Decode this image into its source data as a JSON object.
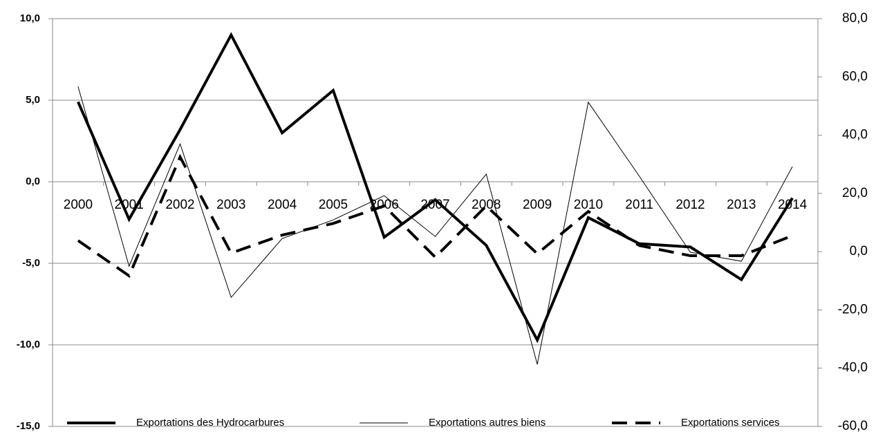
{
  "chart_data": {
    "type": "line",
    "categories": [
      "2000",
      "2001",
      "2002",
      "2003",
      "2004",
      "2005",
      "2006",
      "2007",
      "2008",
      "2009",
      "2010",
      "2011",
      "2012",
      "2013",
      "2014"
    ],
    "series": [
      {
        "name": "Exportations des Hydrocarbures",
        "color": "#000000",
        "linewidth": 4,
        "dash": "solid",
        "values": [
          4.9,
          -2.3,
          3.2,
          9.0,
          3.0,
          5.6,
          -3.4,
          -1.1,
          -3.9,
          -9.7,
          -2.2,
          -3.8,
          -4.0,
          -6.0,
          -1.0
        ]
      },
      {
        "name": "Exportations autres biens",
        "color": "#000000",
        "linewidth": 1,
        "dash": "solid",
        "axis": "y2",
        "values": [
          56.7,
          -5.0,
          37.0,
          -15.7,
          4.5,
          10.9,
          19.2,
          5.2,
          26.6,
          -38.7,
          51.3,
          25.9,
          -0.2,
          -3.3,
          29.2
        ]
      },
      {
        "name": "Exportations services",
        "color": "#000000",
        "linewidth": 4,
        "dash": "dashed",
        "axis": "y2",
        "values": [
          3.8,
          -8.3,
          32.5,
          -0.5,
          5.7,
          9.7,
          15.7,
          -1.9,
          15.7,
          -0.7,
          13.8,
          2.1,
          -1.4,
          -1.4,
          5.5
        ]
      }
    ],
    "ylim": [
      -15,
      10
    ],
    "yticks": [
      {
        "value": -15,
        "label": "-15,0"
      },
      {
        "value": -10,
        "label": "-10,0"
      },
      {
        "value": -5,
        "label": "-5,0"
      },
      {
        "value": 0,
        "label": "0,0"
      },
      {
        "value": 5,
        "label": "5,0"
      },
      {
        "value": 10,
        "label": "10,0"
      }
    ],
    "y2lim": [
      -60,
      80
    ],
    "y2ticks": [
      {
        "value": -60,
        "label": "-60,0"
      },
      {
        "value": -40,
        "label": "-40,0"
      },
      {
        "value": -20,
        "label": "-20,0"
      },
      {
        "value": 0,
        "label": "0,0"
      },
      {
        "value": 20,
        "label": "20,0"
      },
      {
        "value": 40,
        "label": "40,0"
      },
      {
        "value": 60,
        "label": "60,0"
      },
      {
        "value": 80,
        "label": "80,0"
      }
    ],
    "grid": true,
    "legend": "bottom"
  }
}
